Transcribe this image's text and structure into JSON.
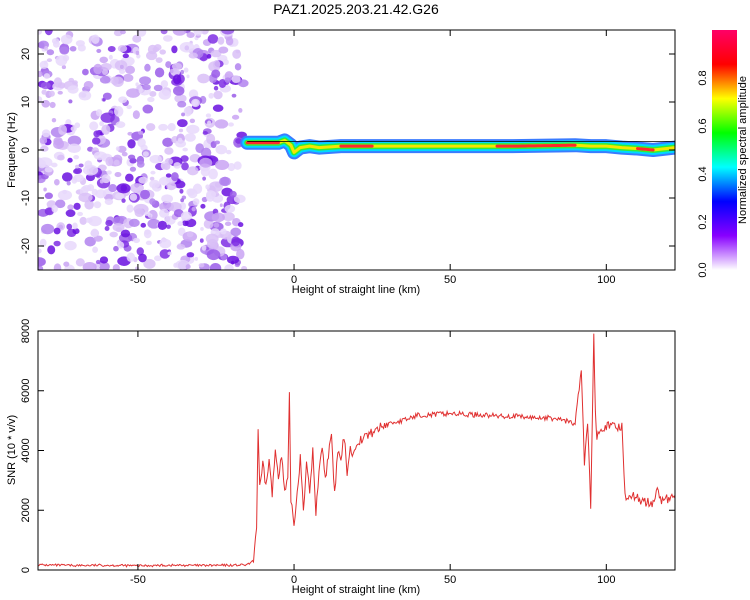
{
  "title": "PAZ1.2025.203.21.42.G26",
  "chart_data": [
    {
      "type": "heatmap",
      "xlabel": "Height of straight line (km)",
      "ylabel": "Frequency (Hz)",
      "xlim": [
        -82,
        122
      ],
      "ylim": [
        -25,
        25
      ],
      "x_ticks": [
        -50,
        0,
        50,
        100
      ],
      "x_tick_labels": [
        "-50",
        "0",
        "50",
        "100"
      ],
      "y_ticks": [
        -20,
        -10,
        0,
        10,
        20
      ],
      "y_tick_labels": [
        "-20",
        "-10",
        "0",
        "10",
        "20"
      ],
      "noise_region_x": [
        -82,
        -16
      ],
      "signal_line": {
        "x_start": -15,
        "x_end": 122,
        "center_frequency_hz": [
          [
            -15,
            1.5
          ],
          [
            -12,
            1.5
          ],
          [
            -8,
            1.5
          ],
          [
            -5,
            1.5
          ],
          [
            -3,
            2.0
          ],
          [
            -1,
            1.0
          ],
          [
            0,
            -0.5
          ],
          [
            2,
            0.5
          ],
          [
            5,
            0.8
          ],
          [
            8,
            0.5
          ],
          [
            15,
            0.8
          ],
          [
            30,
            0.8
          ],
          [
            50,
            0.8
          ],
          [
            70,
            0.8
          ],
          [
            90,
            1.0
          ],
          [
            95,
            0.8
          ],
          [
            100,
            0.8
          ],
          [
            105,
            0.5
          ],
          [
            110,
            0.3
          ],
          [
            115,
            0.0
          ],
          [
            122,
            0.5
          ]
        ],
        "peak_amplitude_segments": [
          [
            -15,
            -5
          ],
          [
            15,
            25
          ],
          [
            65,
            90
          ],
          [
            110,
            115
          ]
        ]
      },
      "colorbar": {
        "label": "Normalized spectral amplitude",
        "range": [
          0,
          1
        ],
        "ticks": [
          0.0,
          0.2,
          0.4,
          0.6,
          0.8
        ],
        "tick_labels": [
          "0.0",
          "0.2",
          "0.4",
          "0.6",
          "0.8"
        ],
        "colors": [
          "#ffffff",
          "#8800ff",
          "#0000ff",
          "#00ffff",
          "#00ff00",
          "#ffff00",
          "#ff0000",
          "#ff0066"
        ]
      },
      "grid": false
    },
    {
      "type": "line",
      "xlabel": "Height of straight line (km)",
      "ylabel": "SNR (10 * v/v)",
      "xlim": [
        -82,
        122
      ],
      "ylim": [
        0,
        8000
      ],
      "x_ticks": [
        -50,
        0,
        50,
        100
      ],
      "x_tick_labels": [
        "-50",
        "0",
        "50",
        "100"
      ],
      "y_ticks": [
        0,
        2000,
        4000,
        6000,
        8000
      ],
      "y_tick_labels": [
        "0",
        "2000",
        "4000",
        "6000",
        "8000"
      ],
      "color": "#e03030",
      "grid": false,
      "x": [
        -82,
        -70,
        -60,
        -50,
        -40,
        -30,
        -20,
        -15,
        -13,
        -12,
        -11.5,
        -11,
        -10,
        -9,
        -8,
        -7,
        -6,
        -5,
        -4,
        -3,
        -2,
        -1.5,
        -1,
        0,
        1,
        2,
        3,
        4,
        5,
        6,
        7,
        8,
        9,
        10,
        11,
        12,
        13,
        14,
        15,
        16,
        17,
        18,
        19,
        20,
        22,
        25,
        28,
        30,
        35,
        40,
        45,
        50,
        55,
        60,
        65,
        70,
        75,
        80,
        85,
        90,
        92,
        93,
        94,
        95,
        96,
        96.5,
        97,
        98,
        100,
        103,
        105,
        106,
        108,
        110,
        112,
        115,
        116,
        118,
        120,
        122
      ],
      "y": [
        170,
        150,
        160,
        140,
        160,
        150,
        160,
        170,
        300,
        1500,
        4800,
        2700,
        3500,
        2800,
        3700,
        2500,
        4000,
        3200,
        3800,
        2600,
        3000,
        5800,
        2400,
        1500,
        2600,
        3800,
        2100,
        3500,
        2600,
        4000,
        1800,
        3400,
        4200,
        3000,
        3900,
        4400,
        2500,
        4000,
        3600,
        4500,
        3300,
        4100,
        3800,
        4300,
        4400,
        4600,
        4800,
        4900,
        5000,
        5200,
        5200,
        5250,
        5200,
        5200,
        5150,
        5150,
        5100,
        5100,
        5050,
        4900,
        6700,
        3500,
        5000,
        2000,
        8000,
        5200,
        4500,
        4800,
        4800,
        4800,
        4800,
        2500,
        2500,
        2400,
        2300,
        2200,
        2700,
        2300,
        2400,
        2400
      ]
    }
  ]
}
